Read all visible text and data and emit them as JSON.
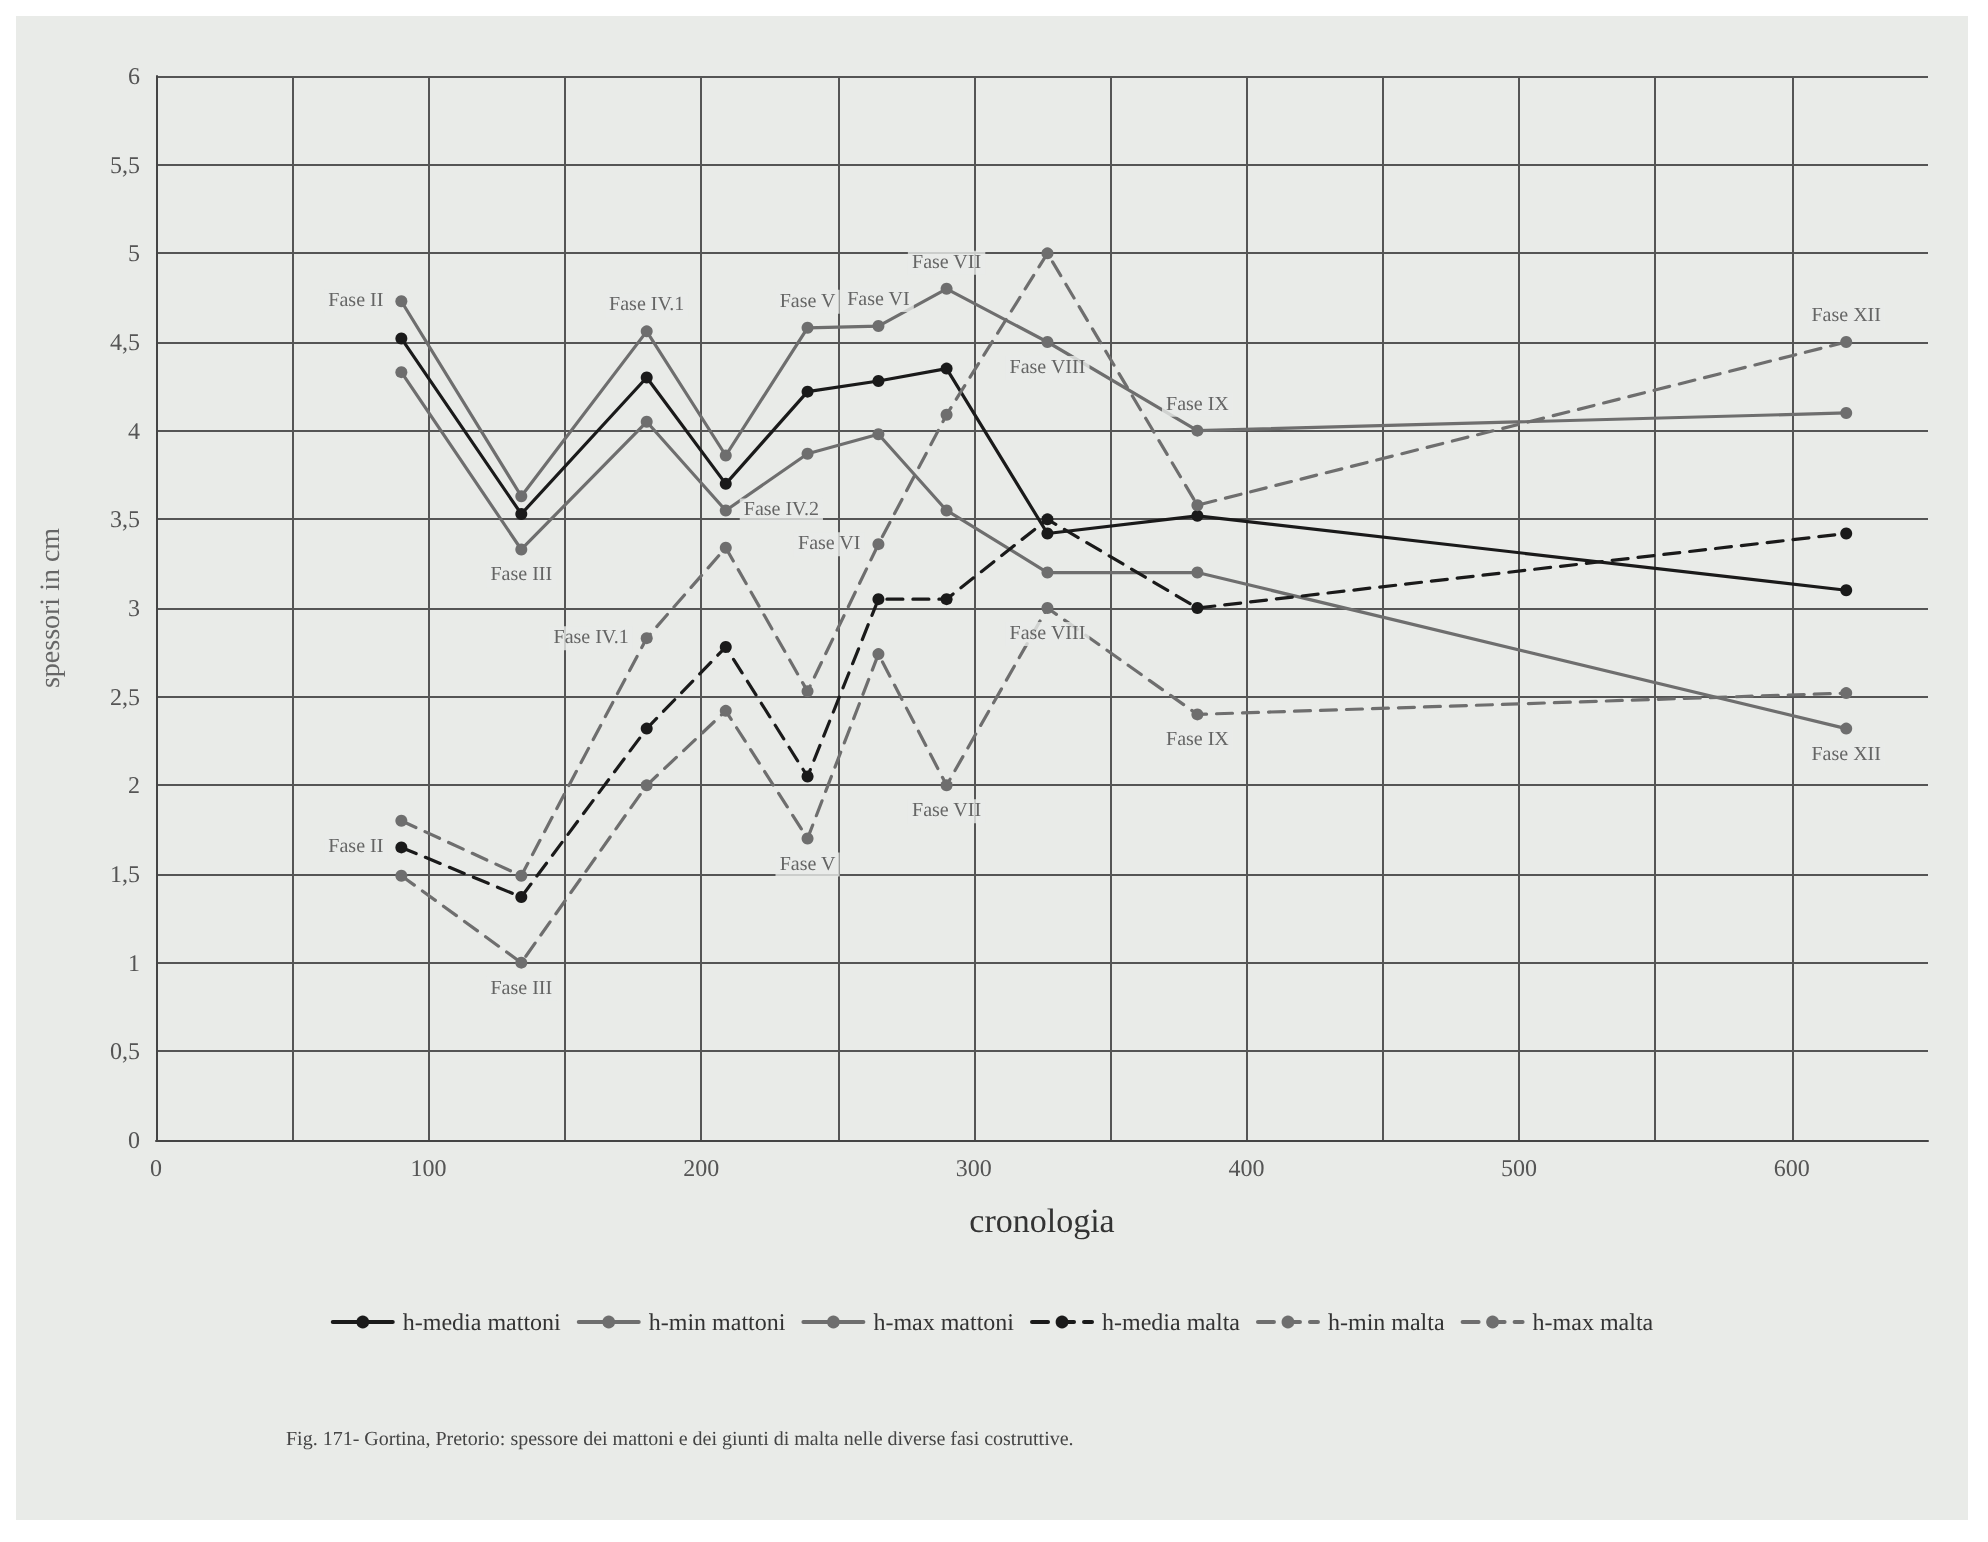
{
  "chart_data": {
    "type": "line",
    "xlabel": "cronologia",
    "ylabel": "spessori in cm",
    "xlim": [
      0,
      650
    ],
    "xticks": [
      0,
      {
        "value": 50,
        "label": null
      },
      100,
      {
        "value": 150,
        "label": null
      },
      200,
      {
        "value": 250,
        "label": null
      },
      300,
      {
        "value": 350,
        "label": null
      },
      400,
      {
        "value": 450,
        "label": null
      },
      500,
      {
        "value": 550,
        "label": null
      },
      600
    ],
    "ylim": [
      0,
      6
    ],
    "yticks": [
      0,
      {
        "value": 0.5,
        "label": "0,5"
      },
      1,
      {
        "value": 1.5,
        "label": "1,5"
      },
      2,
      {
        "value": 2.5,
        "label": "2,5"
      },
      3,
      {
        "value": 3.5,
        "label": "3,5"
      },
      4,
      {
        "value": 4.5,
        "label": "4,5"
      },
      5,
      {
        "value": 5.5,
        "label": "5,5"
      },
      6
    ],
    "grid": true,
    "legend": "bottom",
    "marker": "circle",
    "x": [
      90,
      134,
      180,
      209,
      239,
      265,
      290,
      327,
      382,
      620
    ],
    "series": [
      {
        "name": "h-media mattoni",
        "color": "#1a1a1a",
        "line_style": "solid",
        "values": [
          4.52,
          3.53,
          4.3,
          3.7,
          4.22,
          4.28,
          4.35,
          3.42,
          3.52,
          3.1
        ]
      },
      {
        "name": "h-min mattoni",
        "color": "#6e6e6e",
        "line_style": "solid",
        "values": [
          4.33,
          3.33,
          4.05,
          3.55,
          3.87,
          3.98,
          3.55,
          3.2,
          3.2,
          2.32
        ]
      },
      {
        "name": "h-max mattoni",
        "color": "#6e6e6e",
        "line_style": "solid",
        "values": [
          4.73,
          3.63,
          4.56,
          3.86,
          4.58,
          4.59,
          4.8,
          4.5,
          4.0,
          4.1
        ]
      },
      {
        "name": "h-media malta",
        "color": "#1a1a1a",
        "line_style": "dashed",
        "values": [
          1.65,
          1.37,
          2.32,
          2.78,
          2.05,
          3.05,
          3.05,
          3.5,
          3.0,
          3.42
        ]
      },
      {
        "name": "h-min malta",
        "color": "#6e6e6e",
        "line_style": "dashed",
        "values": [
          1.49,
          1.0,
          2.0,
          2.42,
          1.7,
          2.74,
          2.0,
          3.0,
          2.4,
          2.52
        ]
      },
      {
        "name": "h-max malta",
        "color": "#6e6e6e",
        "line_style": "dashed",
        "values": [
          1.8,
          1.49,
          2.83,
          3.34,
          2.53,
          3.36,
          4.09,
          5.0,
          3.58,
          4.5
        ]
      }
    ],
    "annotations": [
      {
        "text": "Fase II",
        "x": 90,
        "y": 4.73
      },
      {
        "text": "Fase III",
        "x": 134,
        "y": 3.33
      },
      {
        "text": "Fase IV.1",
        "x": 180,
        "y": 4.56
      },
      {
        "text": "Fase IV.2",
        "x": 209,
        "y": 3.55
      },
      {
        "text": "Fase V",
        "x": 239,
        "y": 4.58
      },
      {
        "text": "Fase VI",
        "x": 265,
        "y": 4.59
      },
      {
        "text": "Fase VII",
        "x": 290,
        "y": 4.8
      },
      {
        "text": "Fase VIII",
        "x": 327,
        "y": 4.5
      },
      {
        "text": "Fase IX",
        "x": 382,
        "y": 4.0
      },
      {
        "text": "Fase XII",
        "x": 620,
        "y": 4.5
      },
      {
        "text": "Fase II",
        "x": 90,
        "y": 1.65
      },
      {
        "text": "Fase III",
        "x": 134,
        "y": 1.0
      },
      {
        "text": "Fase IV.1",
        "x": 180,
        "y": 2.83
      },
      {
        "text": "Fase V",
        "x": 239,
        "y": 1.7
      },
      {
        "text": "Fase VI",
        "x": 265,
        "y": 3.36
      },
      {
        "text": "Fase VII",
        "x": 290,
        "y": 2.0
      },
      {
        "text": "Fase VIII",
        "x": 327,
        "y": 3.0
      },
      {
        "text": "Fase IX",
        "x": 382,
        "y": 2.4
      },
      {
        "text": "Fase XII",
        "x": 620,
        "y": 2.32
      },
      "Fig. 171- Gortina, Pretorio: spessore dei mattoni e dei giunti di malta nelle diverse fasi costruttive."
    ]
  }
}
